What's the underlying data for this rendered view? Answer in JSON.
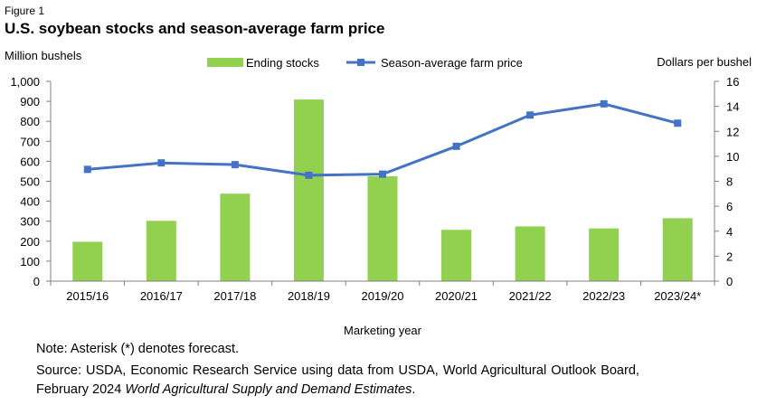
{
  "figure_label": "Figure 1",
  "title": "U.S. soybean stocks and season-average farm price",
  "footnotes": {
    "note": "Note: Asterisk (*) denotes forecast.",
    "source_line1": "Source: USDA, Economic Research Service using data from USDA, World Agricultural Outlook Board,",
    "source_line2_prefix": "February 2024",
    "source_line2_title": "World Agricultural Supply and Demand Estimates",
    "source_line2_suffix": "."
  },
  "chart_data": {
    "type": "bar",
    "categories": [
      "2015/16",
      "2016/17",
      "2017/18",
      "2018/19",
      "2019/20",
      "2020/21",
      "2021/22",
      "2022/23",
      "2023/24*"
    ],
    "series": [
      {
        "name": "Ending stocks",
        "type": "bar",
        "axis": "left",
        "color": "#92d050",
        "values": [
          197,
          302,
          438,
          909,
          525,
          257,
          274,
          264,
          315
        ]
      },
      {
        "name": "Season-average farm price",
        "type": "line",
        "axis": "right",
        "color": "#4472c4",
        "values": [
          8.95,
          9.47,
          9.33,
          8.48,
          8.57,
          10.8,
          13.3,
          14.2,
          12.65
        ]
      }
    ],
    "xlabel": "Marketing year",
    "ylabel_left": "Million bushels",
    "ylabel_right": "Dollars per bushel",
    "ylim_left": [
      0,
      1000
    ],
    "ylim_right": [
      0,
      16
    ],
    "yticks_left": [
      "0",
      "100",
      "200",
      "300",
      "400",
      "500",
      "600",
      "700",
      "800",
      "900",
      "1,000"
    ],
    "yticks_right": [
      "0",
      "2",
      "4",
      "6",
      "8",
      "10",
      "12",
      "14",
      "16"
    ],
    "grid": false,
    "legend_position": "top"
  }
}
